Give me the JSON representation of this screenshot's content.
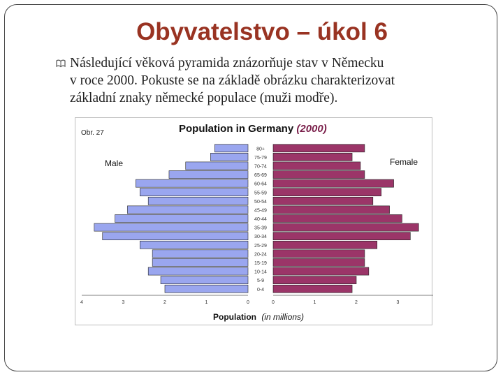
{
  "slide": {
    "title": "Obyvatelstvo – úkol 6",
    "body_lines": [
      "Následující věková pyramida znázorňuje stav v Německu",
      "v roce 2000. Pokuste se na základě obrázku charakterizovat",
      "základní znaky německé populace (muži modře)."
    ],
    "figure_label": "Obr. 27"
  },
  "colors": {
    "title": "#993322",
    "male_bar": "#9aa6ef",
    "female_bar": "#9b3568",
    "bar_stroke": "#222222"
  },
  "chart_data": {
    "type": "bar",
    "orientation": "horizontal-pyramid",
    "title": "Population in Germany",
    "title_year": "(2000)",
    "xlabel": "Population",
    "xlabel_unit": "(in millions)",
    "left_label": "Male",
    "right_label": "Female",
    "categories": [
      "0-4",
      "5-9",
      "10-14",
      "15-19",
      "20-24",
      "25-29",
      "30-34",
      "35-39",
      "40-44",
      "45-49",
      "50-54",
      "55-59",
      "60-64",
      "65-69",
      "70-74",
      "75-79",
      "80+"
    ],
    "series": [
      {
        "name": "Male",
        "values": [
          2.0,
          2.1,
          2.4,
          2.3,
          2.3,
          2.6,
          3.5,
          3.7,
          3.2,
          2.9,
          2.4,
          2.6,
          2.7,
          1.9,
          1.5,
          0.9,
          0.8
        ]
      },
      {
        "name": "Female",
        "values": [
          1.9,
          2.0,
          2.3,
          2.2,
          2.2,
          2.5,
          3.3,
          3.5,
          3.1,
          2.8,
          2.4,
          2.6,
          2.9,
          2.2,
          2.1,
          1.9,
          2.2
        ]
      }
    ],
    "x_ticks_left": [
      "4",
      "3",
      "2",
      "1",
      "0"
    ],
    "x_ticks_right": [
      "0",
      "1",
      "2",
      "3",
      "4"
    ],
    "xlim": [
      0,
      4
    ]
  }
}
